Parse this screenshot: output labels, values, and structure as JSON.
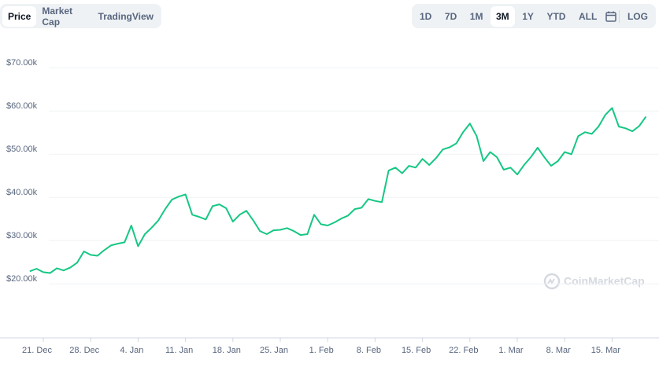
{
  "tabs": [
    "Price",
    "Market Cap",
    "TradingView"
  ],
  "ranges": [
    "1D",
    "7D",
    "1M",
    "3M",
    "1Y",
    "YTD",
    "ALL"
  ],
  "log_button": "LOG",
  "watermark": "CoinMarketCap",
  "chart_data": {
    "type": "line",
    "color": "#16c784",
    "grid": true,
    "ylim": [
      7500,
      75000
    ],
    "yticks": [
      {
        "value": 20000,
        "label": "$20.00k"
      },
      {
        "value": 30000,
        "label": "$30.00k"
      },
      {
        "value": 40000,
        "label": "$40.00k"
      },
      {
        "value": 50000,
        "label": "$50.00k"
      },
      {
        "value": 60000,
        "label": "$60.00k"
      },
      {
        "value": 70000,
        "label": "$70.00k"
      }
    ],
    "categories": [
      null,
      null,
      "21. Dec",
      null,
      null,
      null,
      null,
      null,
      null,
      "28. Dec",
      null,
      null,
      null,
      null,
      null,
      null,
      "4. Jan",
      null,
      null,
      null,
      null,
      null,
      null,
      "11. Jan",
      null,
      null,
      null,
      null,
      null,
      null,
      "18. Jan",
      null,
      null,
      null,
      null,
      null,
      null,
      "25. Jan",
      null,
      null,
      null,
      null,
      null,
      null,
      "1. Feb",
      null,
      null,
      null,
      null,
      null,
      null,
      "8. Feb",
      null,
      null,
      null,
      null,
      null,
      null,
      "15. Feb",
      null,
      null,
      null,
      null,
      null,
      null,
      "22. Feb",
      null,
      null,
      null,
      null,
      null,
      null,
      "1. Mar",
      null,
      null,
      null,
      null,
      null,
      null,
      "8. Mar",
      null,
      null,
      null,
      null,
      null,
      null,
      "15. Mar",
      null,
      null,
      null,
      null,
      null
    ],
    "values": [
      22900,
      23500,
      22700,
      22500,
      23600,
      23100,
      23800,
      24900,
      27500,
      26700,
      26500,
      27800,
      28900,
      29300,
      29600,
      33500,
      28700,
      31500,
      33000,
      34700,
      37300,
      39500,
      40200,
      40700,
      36000,
      35500,
      34900,
      38000,
      38400,
      37500,
      34400,
      36000,
      36900,
      34700,
      32200,
      31500,
      32400,
      32500,
      32900,
      32200,
      31300,
      31500,
      36000,
      33800,
      33500,
      34200,
      35100,
      35800,
      37300,
      37600,
      39600,
      39200,
      38900,
      46200,
      46900,
      45600,
      47300,
      46900,
      48900,
      47500,
      49100,
      51100,
      51600,
      52500,
      55100,
      57100,
      54200,
      48400,
      50500,
      49300,
      46400,
      46900,
      45300,
      47500,
      49300,
      51500,
      49300,
      47300,
      48400,
      50500,
      50000,
      54200,
      55100,
      54700,
      56400,
      59100,
      60700,
      56400,
      56000,
      55300,
      56500,
      58700
    ]
  }
}
